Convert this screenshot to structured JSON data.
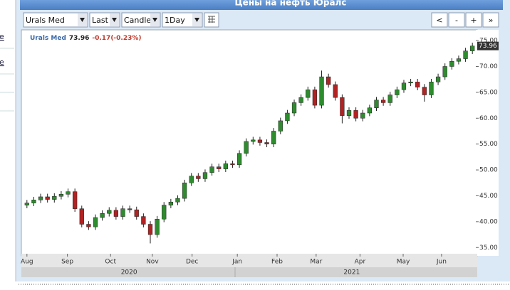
{
  "header": {
    "title": "Цены на нефть Юралс"
  },
  "sidebar": [
    "e",
    "e"
  ],
  "toolbar": {
    "selects": [
      "Urals Med",
      "Last",
      "Candle",
      "1Day"
    ],
    "buttons": [
      "<",
      "-",
      "+",
      "»"
    ]
  },
  "chart_data": {
    "type": "candlestick",
    "name": "Urals Med",
    "last_value": 73.96,
    "change": "-0.17(-0.23%)",
    "up_color": "#2e8b2e",
    "down_color": "#b22222",
    "open": [
      43.2,
      43.6,
      44.2,
      44.8,
      44.3,
      44.9,
      45.3,
      45.8,
      42.5,
      39.5,
      39.0,
      40.8,
      41.6,
      42.2,
      41.0,
      42.5,
      42.3,
      41.0,
      39.5,
      37.5,
      40.5,
      43.2,
      43.8,
      44.5,
      47.5,
      48.8,
      48.3,
      49.5,
      50.6,
      50.2,
      51.2,
      51.0,
      53.2,
      55.5,
      55.8,
      55.3,
      55.0,
      57.5,
      59.5,
      61.0,
      63.0,
      64.0,
      65.5,
      62.5,
      68.0,
      66.5,
      64.0,
      60.5,
      61.5,
      60.0,
      61.0,
      62.0,
      63.5,
      63.0,
      64.5,
      65.5,
      66.8,
      67.0,
      66.0,
      64.5,
      67.0,
      68.0,
      70.0,
      71.0,
      71.5,
      73.0
    ],
    "high": [
      44.2,
      44.8,
      45.4,
      45.4,
      45.5,
      45.9,
      46.4,
      46.4,
      43.1,
      40.1,
      41.4,
      42.2,
      42.8,
      42.8,
      43.1,
      43.1,
      42.9,
      41.6,
      40.1,
      41.1,
      43.8,
      44.4,
      45.1,
      48.1,
      49.4,
      49.4,
      50.1,
      51.2,
      51.2,
      51.8,
      51.8,
      53.8,
      56.1,
      56.4,
      56.4,
      55.9,
      58.1,
      60.1,
      61.6,
      63.6,
      64.6,
      66.1,
      66.1,
      69.2,
      68.6,
      67.1,
      64.6,
      62.1,
      62.1,
      61.6,
      62.6,
      64.1,
      64.1,
      65.1,
      66.1,
      67.4,
      67.6,
      67.6,
      66.6,
      67.6,
      68.6,
      70.6,
      71.6,
      72.1,
      73.6,
      74.6
    ],
    "low": [
      42.6,
      43.0,
      43.6,
      43.7,
      43.7,
      44.3,
      44.7,
      41.9,
      38.9,
      38.4,
      38.4,
      40.2,
      41.0,
      40.4,
      40.4,
      41.7,
      40.4,
      38.9,
      35.8,
      36.9,
      39.9,
      42.6,
      43.2,
      43.9,
      46.9,
      47.7,
      47.7,
      48.9,
      49.6,
      49.6,
      50.4,
      50.4,
      52.6,
      54.9,
      54.7,
      54.4,
      54.4,
      56.9,
      58.9,
      60.4,
      62.4,
      63.4,
      61.9,
      61.9,
      65.9,
      63.4,
      59.0,
      59.9,
      59.4,
      59.4,
      60.4,
      61.4,
      62.4,
      62.4,
      63.9,
      64.9,
      66.2,
      65.4,
      63.2,
      63.9,
      66.4,
      67.4,
      69.4,
      70.4,
      70.9,
      72.4
    ],
    "close": [
      43.6,
      44.2,
      44.8,
      44.3,
      44.9,
      45.3,
      45.8,
      42.5,
      39.5,
      39.0,
      40.8,
      41.6,
      42.2,
      41.0,
      42.5,
      42.3,
      41.0,
      39.5,
      37.5,
      40.5,
      43.2,
      43.8,
      44.5,
      47.5,
      48.8,
      48.3,
      49.5,
      50.6,
      50.2,
      51.2,
      51.0,
      53.2,
      55.5,
      55.8,
      55.3,
      55.0,
      57.5,
      59.5,
      61.0,
      63.0,
      64.0,
      65.5,
      62.5,
      68.0,
      66.5,
      64.0,
      60.5,
      61.5,
      60.0,
      61.0,
      62.0,
      63.5,
      63.0,
      64.5,
      65.5,
      66.8,
      67.0,
      66.0,
      64.5,
      67.0,
      68.0,
      70.0,
      71.0,
      71.5,
      73.0,
      73.96
    ],
    "xlim": [
      -0.5,
      65.5
    ],
    "xticks": [
      {
        "value": 0,
        "label": "Aug"
      },
      {
        "value": 5.9,
        "label": "Sep"
      },
      {
        "value": 12.2,
        "label": "Oct"
      },
      {
        "value": 18.3,
        "label": "Nov"
      },
      {
        "value": 24.1,
        "label": "Dec"
      },
      {
        "value": 30.7,
        "label": "Jan"
      },
      {
        "value": 36.5,
        "label": "Feb"
      },
      {
        "value": 42.2,
        "label": "Mar"
      },
      {
        "value": 48.6,
        "label": "Apr"
      },
      {
        "value": 54.9,
        "label": "May"
      },
      {
        "value": 60.5,
        "label": "Jun"
      }
    ],
    "years": [
      {
        "value": 14.9,
        "label": "2020"
      },
      {
        "value": 47.4,
        "label": "2021"
      }
    ],
    "ylim": [
      33.8,
      76.8
    ],
    "yticks": [
      {
        "value": 35,
        "label": "35.00"
      },
      {
        "value": 40,
        "label": "40.00"
      },
      {
        "value": 45,
        "label": "45.00"
      },
      {
        "value": 50,
        "label": "50.00"
      },
      {
        "value": 55,
        "label": "55.00"
      },
      {
        "value": 60,
        "label": "60.00"
      },
      {
        "value": 65,
        "label": "65.00"
      },
      {
        "value": 70,
        "label": "70.00"
      },
      {
        "value": 75,
        "label": "75.00"
      }
    ]
  }
}
